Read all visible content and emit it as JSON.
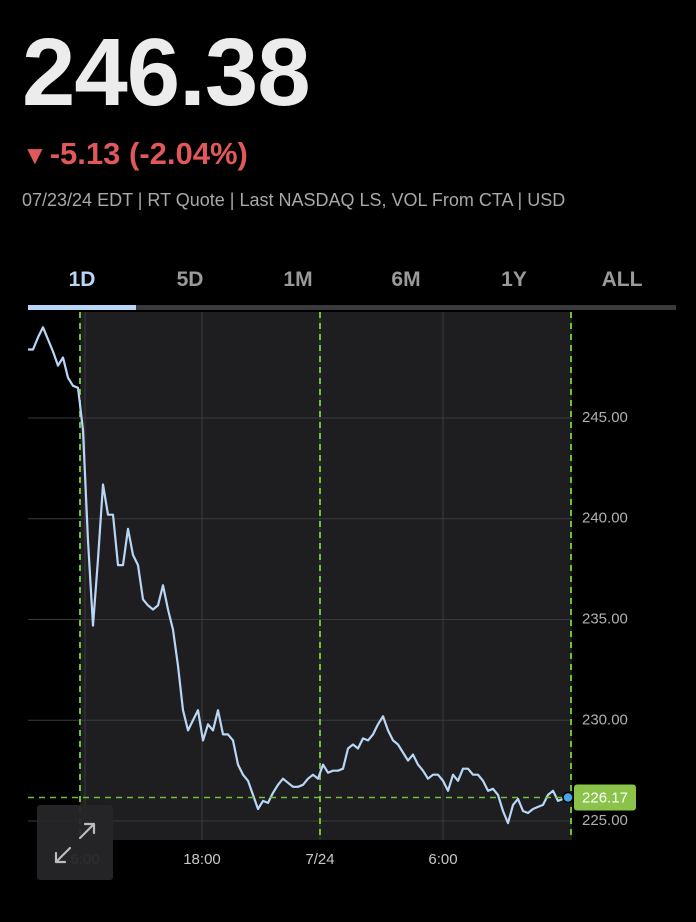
{
  "header": {
    "price": "246.38",
    "change": "-5.13 (-2.04%)",
    "info": "07/23/24 EDT | RT Quote | Last NASDAQ LS, VOL From CTA | USD"
  },
  "tabs": [
    "1D",
    "5D",
    "1M",
    "6M",
    "1Y",
    "ALL"
  ],
  "chart_data": {
    "type": "line",
    "color": "#b9d6f7",
    "values": [
      248.4,
      248.4,
      249.0,
      249.5,
      248.9,
      248.3,
      247.6,
      248.0,
      247.0,
      246.6,
      246.5,
      244.4,
      238.9,
      234.7,
      238.0,
      241.7,
      240.2,
      240.2,
      237.7,
      237.7,
      239.5,
      238.2,
      237.7,
      236.0,
      235.7,
      235.5,
      235.7,
      236.7,
      235.5,
      234.5,
      232.7,
      230.5,
      229.5,
      230.0,
      230.5,
      229.0,
      229.8,
      229.5,
      230.5,
      229.3,
      229.3,
      229.0,
      227.8,
      227.3,
      227.0,
      226.3,
      225.6,
      226.0,
      225.9,
      226.4,
      226.8,
      227.1,
      226.9,
      226.7,
      226.7,
      226.8,
      227.1,
      227.3,
      227.1,
      227.8,
      227.4,
      227.5,
      227.5,
      227.6,
      228.6,
      228.8,
      228.6,
      229.1,
      229.0,
      229.3,
      229.8,
      230.2,
      229.5,
      229.0,
      228.8,
      228.4,
      228.0,
      228.3,
      227.8,
      227.5,
      227.1,
      227.3,
      227.3,
      227.0,
      226.5,
      227.3,
      227.0,
      227.6,
      227.6,
      227.3,
      227.3,
      227.0,
      226.5,
      226.6,
      226.3,
      225.5,
      224.9,
      225.8,
      226.1,
      225.5,
      225.4,
      225.6,
      225.7,
      225.8,
      226.3,
      226.5,
      226.0,
      226.1,
      226.17
    ],
    "last_price": 226.17,
    "xlim": [
      0,
      108
    ],
    "xticks": [
      {
        "value": 11.4,
        "label": "6:00"
      },
      {
        "value": 34.8,
        "label": "18:00"
      },
      {
        "value": 58.4,
        "label": "7/24"
      },
      {
        "value": 83,
        "label": "6:00"
      }
    ],
    "ylim": [
      224.06,
      250.26
    ],
    "yticks": [
      {
        "value": 225,
        "label": "225.00"
      },
      {
        "value": 230,
        "label": "230.00"
      },
      {
        "value": 235,
        "label": "235.00"
      },
      {
        "value": 240,
        "label": "240.00"
      },
      {
        "value": 245,
        "label": "245.00"
      }
    ],
    "grid": true
  }
}
